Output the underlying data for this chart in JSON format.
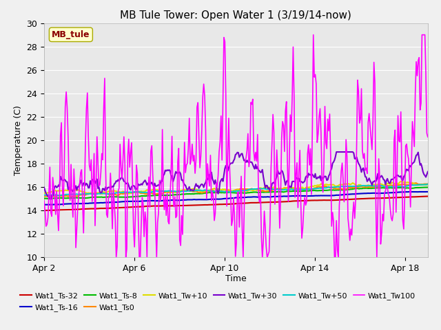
{
  "title": "MB Tule Tower: Open Water 1 (3/19/14-now)",
  "xlabel": "Time",
  "ylabel": "Temperature (C)",
  "xlim": [
    0,
    17
  ],
  "ylim": [
    10,
    30
  ],
  "yticks": [
    10,
    12,
    14,
    16,
    18,
    20,
    22,
    24,
    26,
    28,
    30
  ],
  "xtick_labels": [
    "Apr 2",
    "Apr 6",
    "Apr 10",
    "Apr 14",
    "Apr 18"
  ],
  "xtick_positions": [
    0,
    4,
    8,
    12,
    16
  ],
  "fig_bg": "#f0f0f0",
  "plot_bg": "#e8e8e8",
  "grid_color": "#ffffff",
  "legend_label": "MB_tule",
  "series": {
    "Wat1_Ts-32": {
      "color": "#cc0000",
      "lw": 1.5
    },
    "Wat1_Ts-16": {
      "color": "#0000cc",
      "lw": 1.5
    },
    "Wat1_Ts-8": {
      "color": "#00bb00",
      "lw": 1.5
    },
    "Wat1_Ts0": {
      "color": "#ff8800",
      "lw": 1.5
    },
    "Wat1_Tw+10": {
      "color": "#dddd00",
      "lw": 1.5
    },
    "Wat1_Tw+30": {
      "color": "#7700cc",
      "lw": 1.5
    },
    "Wat1_Tw+50": {
      "color": "#00cccc",
      "lw": 1.5
    },
    "Wat1_Tw100": {
      "color": "#ff00ff",
      "lw": 1.2
    }
  },
  "title_fontsize": 11,
  "tick_fontsize": 9,
  "label_fontsize": 9,
  "legend_fontsize": 8
}
